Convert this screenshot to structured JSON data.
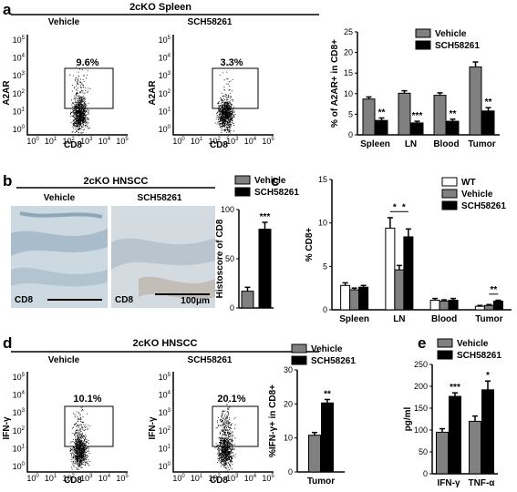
{
  "colors": {
    "vehicle": "#808080",
    "sch": "#000000",
    "wt": "#ffffff"
  },
  "panel_a": {
    "letter": "a",
    "header": "2cKO Spleen",
    "flow": [
      {
        "title": "Vehicle",
        "pct": "9.6%",
        "ylabel": "A2AR",
        "xlabel": "CD8"
      },
      {
        "title": "SCH58261",
        "pct": "3.3%",
        "ylabel": "A2AR",
        "xlabel": "CD8"
      }
    ]
  },
  "panel_b": {
    "letter": "b",
    "header": "2cKO HNSCC",
    "images": [
      {
        "title": "Vehicle",
        "label": "CD8"
      },
      {
        "title": "SCH58261",
        "label": "CD8",
        "scale": "100μm"
      }
    ]
  },
  "panel_c": {
    "letter": "c"
  },
  "panel_d": {
    "letter": "d",
    "header": "2cKO HNSCC",
    "flow": [
      {
        "title": "Vehicle",
        "pct": "10.1%",
        "ylabel": "IFN-γ",
        "xlabel": "CD8"
      },
      {
        "title": "SCH58261",
        "pct": "20.1%",
        "ylabel": "IFN-γ",
        "xlabel": "CD8"
      }
    ]
  },
  "panel_e": {
    "letter": "e"
  },
  "chart_data": [
    {
      "id": "a",
      "type": "bar",
      "categories": [
        "Spleen",
        "LN",
        "Blood",
        "Tumor"
      ],
      "series": [
        {
          "name": "Vehicle",
          "values": [
            8.7,
            10.1,
            9.6,
            16.5
          ],
          "errors": [
            0.5,
            0.6,
            0.6,
            1.2
          ]
        },
        {
          "name": "SCH58261",
          "values": [
            3.5,
            2.9,
            3.3,
            5.8
          ],
          "errors": [
            0.6,
            0.4,
            0.5,
            0.8
          ]
        }
      ],
      "significance": [
        "**",
        "***",
        "**",
        "**"
      ],
      "ylabel": "% of A2AR+ in CD8+",
      "ylim": [
        0,
        25
      ],
      "yticks": [
        0,
        5,
        10,
        15,
        20,
        25
      ],
      "legend": "top-right"
    },
    {
      "id": "b",
      "type": "bar",
      "categories": [
        "Vehicle",
        "SCH58261"
      ],
      "values": [
        17,
        80
      ],
      "errors": [
        4,
        7
      ],
      "significance": "***",
      "ylabel": "Histoscore of CD8",
      "ylim": [
        0,
        100
      ],
      "yticks": [
        0,
        50,
        100
      ],
      "legend": "top"
    },
    {
      "id": "c",
      "type": "bar",
      "categories": [
        "Spleen",
        "LN",
        "Blood",
        "Tumor"
      ],
      "series": [
        {
          "name": "WT",
          "values": [
            2.8,
            9.4,
            1.1,
            0.4
          ],
          "errors": [
            0.3,
            1.2,
            0.2,
            0.1
          ]
        },
        {
          "name": "Vehicle",
          "values": [
            2.3,
            4.6,
            1.0,
            0.5
          ],
          "errors": [
            0.2,
            0.5,
            0.15,
            0.1
          ]
        },
        {
          "name": "SCH58261",
          "values": [
            2.6,
            8.4,
            1.1,
            1.0
          ],
          "errors": [
            0.2,
            0.9,
            0.2,
            0.1
          ]
        }
      ],
      "significance_labels": [
        "*",
        "*",
        "**"
      ],
      "ylabel": "% CD8+",
      "ylim": [
        0,
        15
      ],
      "yticks": [
        0,
        5,
        10,
        15
      ],
      "legend": "top-right"
    },
    {
      "id": "d",
      "type": "bar",
      "categories": [
        "Tumor"
      ],
      "series": [
        {
          "name": "Vehicle",
          "values": [
            10.8
          ],
          "errors": [
            0.8
          ]
        },
        {
          "name": "SCH58261",
          "values": [
            20.3
          ],
          "errors": [
            1.0
          ]
        }
      ],
      "significance": [
        "**"
      ],
      "ylabel": "%IFN-γ+ in CD8+",
      "ylim": [
        0,
        30
      ],
      "yticks": [
        0,
        10,
        20,
        30
      ],
      "legend": "top"
    },
    {
      "id": "e",
      "type": "bar",
      "categories": [
        "IFN-γ",
        "TNF-α"
      ],
      "series": [
        {
          "name": "Vehicle",
          "values": [
            95,
            120
          ],
          "errors": [
            8,
            12
          ]
        },
        {
          "name": "SCH58261",
          "values": [
            177,
            192
          ],
          "errors": [
            8,
            20
          ]
        }
      ],
      "significance": [
        "***",
        "*"
      ],
      "ylabel": "pg/ml",
      "ylim": [
        0,
        250
      ],
      "yticks": [
        0,
        50,
        100,
        150,
        200,
        250
      ],
      "legend": "top"
    }
  ]
}
